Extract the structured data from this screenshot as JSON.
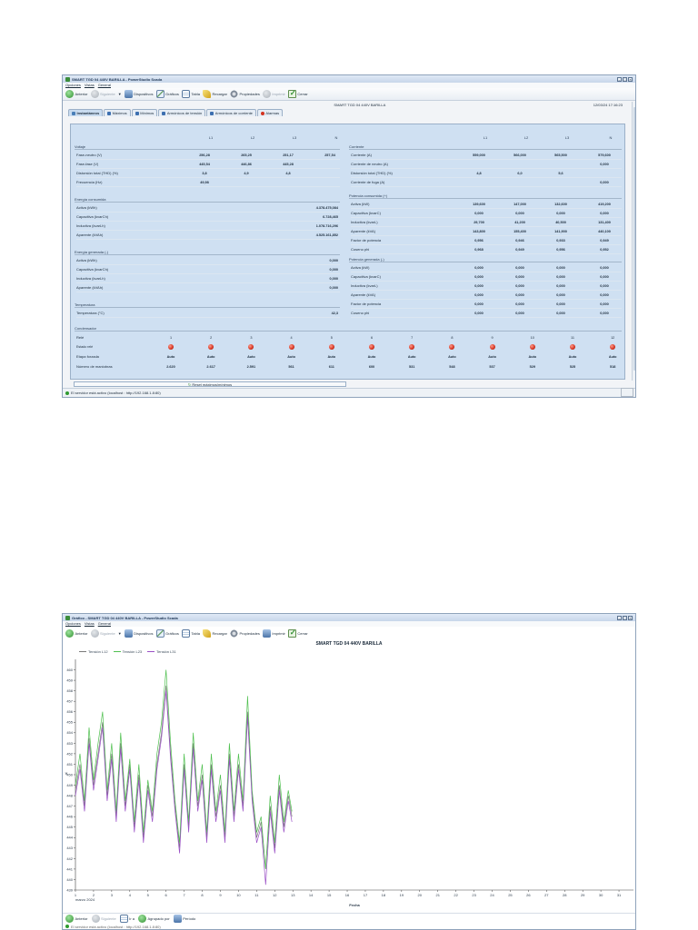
{
  "win1": {
    "title": "SMART TGD 04 440V BARILLA - PowerStudio Scada",
    "menu": [
      "Opciones",
      "Vistas",
      "General"
    ],
    "toolbar": {
      "anterior": "Anterior",
      "siguiente": "Siguiente",
      "dispositivos": "Dispositivos",
      "graficos": "Gráficos",
      "tabla": "Tabla",
      "recargar": "Recargar",
      "propiedades": "Propiedades",
      "imprimir": "Imprimir",
      "cerrar": "Cerrar"
    },
    "device_name": "SMART TGD 04 440V BARILLA",
    "datetime": "12/03/24 17:16:23",
    "tabs": [
      "Instantáneos",
      "Máximos",
      "Mínimos",
      "Armónicos de tensión",
      "Armónicos de corriente",
      "Alarmas"
    ],
    "col_headers": [
      "L1",
      "L2",
      "L3",
      "N"
    ],
    "left": {
      "voltaje": {
        "title": "Voltaje",
        "rows": [
          {
            "label": "Fase-neutro (V)",
            "values": [
              "256,28",
              "265,25",
              "251,17",
              "257,54"
            ]
          },
          {
            "label": "Fase-fase (V)",
            "values": [
              "445,54",
              "446,86",
              "445,28",
              ""
            ]
          },
          {
            "label": "Distorsión total (THD) (%)",
            "values": [
              "3,8",
              "4,9",
              "4,8",
              ""
            ]
          },
          {
            "label": "Frecuencia (Hz)",
            "values": [
              "49,98",
              "",
              "",
              ""
            ]
          }
        ]
      },
      "energia_consumida": {
        "title": "Energía consumida",
        "rows": [
          {
            "label": "Activa (kWh)",
            "value": "4.378.475,084"
          },
          {
            "label": "Capacitiva (kvarCh)",
            "value": "6.728,465"
          },
          {
            "label": "Inductiva (kvarLh)",
            "value": "1.078.716,296"
          },
          {
            "label": "Aparente (kVAh)",
            "value": "4.525.161,852"
          }
        ]
      },
      "energia_generada": {
        "title": "Energía generada (-)",
        "rows": [
          {
            "label": "Activa (kWh)",
            "value": "0,000"
          },
          {
            "label": "Capacitiva (kvarCh)",
            "value": "0,000"
          },
          {
            "label": "Inductiva (kvarLh)",
            "value": "0,000"
          },
          {
            "label": "Aparente (kVAh)",
            "value": "0,000"
          }
        ]
      },
      "temperatura": {
        "title": "Temperatura",
        "rows": [
          {
            "label": "Temperatura (°C)",
            "value": "42,3"
          }
        ]
      }
    },
    "right": {
      "corriente": {
        "title": "Corriente",
        "rows": [
          {
            "label": "Corriente (A)",
            "values": [
              "559,000",
              "566,000",
              "565,500",
              "579,600"
            ]
          },
          {
            "label": "Corriente de neutro (A)",
            "values": [
              "",
              "",
              "",
              "0,000"
            ]
          },
          {
            "label": "Distorsión total (THD) (%)",
            "values": [
              "4,8",
              "6,0",
              "5,6",
              ""
            ]
          },
          {
            "label": "Corriente de fuga (A)",
            "values": [
              "",
              "",
              "",
              "0,000"
            ]
          }
        ]
      },
      "potencia_consumida": {
        "title": "Potencia consumida (+)",
        "rows": [
          {
            "label": "Activa (kW)",
            "values": [
              "139,600",
              "147,000",
              "132,600",
              "419,200"
            ]
          },
          {
            "label": "Capacitiva (kvarC)",
            "values": [
              "0,000",
              "0,000",
              "0,000",
              "0,000"
            ]
          },
          {
            "label": "Inductiva (kvarL)",
            "values": [
              "29,700",
              "41,200",
              "40,500",
              "131,400"
            ]
          },
          {
            "label": "Aparente (kVA)",
            "values": [
              "143,800",
              "155,400",
              "141,900",
              "440,100"
            ]
          },
          {
            "label": "Factor de potencia",
            "values": [
              "0,956",
              "0,946",
              "0,933",
              "0,949"
            ]
          },
          {
            "label": "Coseno phi",
            "values": [
              "0,968",
              "0,949",
              "0,956",
              "0,952"
            ]
          }
        ]
      },
      "potencia_generada": {
        "title": "Potencia generada (-)",
        "rows": [
          {
            "label": "Activa (kW)",
            "values": [
              "0,000",
              "0,000",
              "0,000",
              "0,000"
            ]
          },
          {
            "label": "Capacitiva (kvarC)",
            "values": [
              "0,000",
              "0,000",
              "0,000",
              "0,000"
            ]
          },
          {
            "label": "Inductiva (kvarL)",
            "values": [
              "0,000",
              "0,000",
              "0,000",
              "0,000"
            ]
          },
          {
            "label": "Aparente (kVA)",
            "values": [
              "0,000",
              "0,000",
              "0,000",
              "0,000"
            ]
          },
          {
            "label": "Factor de potencia",
            "values": [
              "0,000",
              "0,000",
              "0,000",
              "0,000"
            ]
          },
          {
            "label": "Coseno phi",
            "values": [
              "0,000",
              "0,000",
              "0,000",
              "0,000"
            ]
          }
        ]
      }
    },
    "condensador": {
      "title": "Condensador",
      "labels": {
        "rele": "Relé",
        "estado": "Estado relé",
        "etapa": "Etapa forzada",
        "maniobras": "Número de maniobras"
      },
      "numbers": [
        "1",
        "2",
        "3",
        "4",
        "5",
        "6",
        "7",
        "8",
        "9",
        "10",
        "11",
        "12"
      ],
      "etapa": [
        "Auto",
        "Auto",
        "Auto",
        "Auto",
        "Auto",
        "Auto",
        "Auto",
        "Auto",
        "Auto",
        "Auto",
        "Auto",
        "Auto"
      ],
      "maniobras": [
        "2.620",
        "2.617",
        "2.591",
        "561",
        "611",
        "600",
        "531",
        "548",
        "537",
        "529",
        "525",
        "518"
      ]
    },
    "reset_label": "Reset máximos/mínimos",
    "status_text": "El servidor está activo (localhost : http://192.168.1.8:80)",
    "colors": {
      "panel": "#cfe0f2",
      "relay_dot": "#d4331f"
    }
  },
  "win2": {
    "title": "Gráfico - SMART TGD 04 440V BARILLA - PowerStudio Scada",
    "menu": [
      "Opciones",
      "Vistas",
      "General"
    ],
    "toolbar": {
      "anterior": "Anterior",
      "siguiente": "Siguiente",
      "dispositivos": "Dispositivos",
      "graficos": "Gráficos",
      "tabla": "Tabla",
      "recargar": "Recargar",
      "propiedades": "Propiedades",
      "imprimir": "Imprimir",
      "cerrar": "Cerrar"
    },
    "bottom": {
      "anterior": "Anterior",
      "siguiente": "Siguiente",
      "ira": "Ir a",
      "agrupado": "Agrupado por",
      "periodo": "Período"
    },
    "status_text": "El servidor está activo (localhost : http://192.168.1.8:80)"
  },
  "chart_data": {
    "type": "line",
    "title": "SMART TGD 04 440V BARILLA",
    "xlabel": "Fecha",
    "ylabel": "V",
    "x_month_label": "marzo 2024",
    "xlim": [
      1,
      31.8
    ],
    "ylim": [
      439,
      461
    ],
    "xticks": [
      1,
      2,
      3,
      4,
      5,
      6,
      7,
      8,
      9,
      10,
      11,
      12,
      13,
      14,
      15,
      16,
      17,
      18,
      19,
      20,
      21,
      22,
      23,
      24,
      25,
      26,
      27,
      28,
      29,
      30,
      31
    ],
    "yticks": [
      439,
      440,
      441,
      442,
      443,
      444,
      445,
      446,
      447,
      448,
      449,
      450,
      451,
      452,
      453,
      454,
      455,
      456,
      457,
      458,
      459,
      460
    ],
    "x": [
      1.0,
      1.25,
      1.5,
      1.75,
      2.0,
      2.25,
      2.5,
      2.75,
      3.0,
      3.25,
      3.5,
      3.75,
      4.0,
      4.25,
      4.5,
      4.75,
      5.0,
      5.25,
      5.5,
      5.75,
      6.0,
      6.25,
      6.5,
      6.75,
      7.0,
      7.25,
      7.5,
      7.75,
      8.0,
      8.25,
      8.5,
      8.75,
      9.0,
      9.25,
      9.5,
      9.75,
      10.0,
      10.25,
      10.5,
      10.75,
      11.0,
      11.25,
      11.5,
      11.75,
      12.0,
      12.25,
      12.5,
      12.75,
      12.95
    ],
    "series": [
      {
        "name": "Tensión L12",
        "color": "#7a7a7a",
        "values": [
          448.5,
          451,
          447,
          453.5,
          449,
          452,
          455,
          448,
          452,
          446,
          453,
          447,
          451,
          445,
          450,
          444,
          449,
          446,
          451,
          454,
          458.5,
          452,
          447,
          443,
          451,
          445,
          453,
          447,
          450,
          444,
          451,
          446,
          449,
          444,
          452,
          446,
          451,
          447,
          456,
          448,
          444,
          445.5,
          441,
          447,
          443,
          449,
          445,
          448,
          446
        ]
      },
      {
        "name": "Tensión L23",
        "color": "#4fc04f",
        "values": [
          449,
          452,
          447.5,
          454.5,
          449.5,
          453,
          456,
          448.5,
          453,
          446.5,
          454,
          447.5,
          451.5,
          445.5,
          451,
          444.5,
          449.5,
          446.5,
          452,
          455,
          460,
          453,
          447.5,
          443.5,
          452,
          445.5,
          454,
          447.5,
          451,
          444.5,
          452,
          446.5,
          450,
          444.5,
          453,
          446.5,
          452,
          447.5,
          457.5,
          448.5,
          444.5,
          446,
          441,
          448,
          443.5,
          450,
          445.5,
          448.5,
          446.5
        ]
      },
      {
        "name": "Tensión L31",
        "color": "#9a4fc6",
        "values": [
          448,
          450.5,
          446.5,
          453,
          448.5,
          451.5,
          454.5,
          447.5,
          451.5,
          445.5,
          452.5,
          446.5,
          450.5,
          444.5,
          449.5,
          443.5,
          448.5,
          445.5,
          450.5,
          453.5,
          458,
          451.5,
          446.5,
          442.5,
          450.5,
          444.5,
          452.5,
          446.5,
          449.5,
          443.5,
          450.5,
          445.5,
          448.5,
          443.5,
          451.5,
          445.5,
          450.5,
          446.5,
          455.5,
          447.5,
          443.5,
          445,
          439.5,
          446.5,
          442.5,
          448.5,
          444.5,
          447.5,
          445.5
        ]
      }
    ]
  }
}
